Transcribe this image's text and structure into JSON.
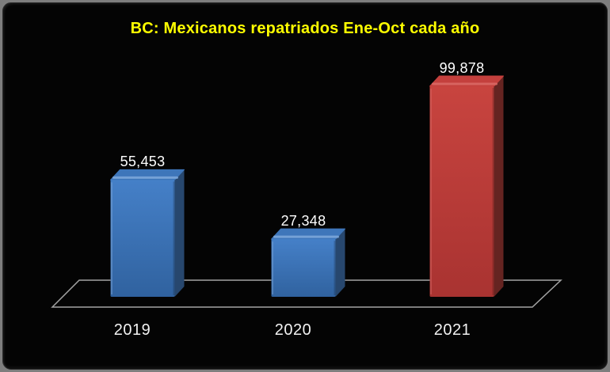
{
  "window": {
    "background": "#040404",
    "frame_border_color": "#7e7e7e"
  },
  "chart_data": {
    "type": "bar",
    "effect": "3d",
    "title": "BC: Mexicanos repatriados Ene-Oct cada año",
    "title_color": "#FFFF00",
    "categories": [
      "2019",
      "2020",
      "2021"
    ],
    "values": [
      55453,
      27348,
      99878
    ],
    "value_labels": [
      "55,453",
      "27,348",
      "99,878"
    ],
    "bar_palette": [
      "blue",
      "blue",
      "red"
    ],
    "palette": {
      "blue": {
        "face_top": "#4580C8",
        "face_bottom": "#30629F",
        "side": "#27476E",
        "top_face": "#3E76BA",
        "bevel": "#7FA9DC"
      },
      "red": {
        "face_top": "#C8443F",
        "face_bottom": "#A93331",
        "side": "#652421",
        "top_face": "#C4403D",
        "bevel": "#DB6B67"
      }
    },
    "label_color": "#FFFFFF",
    "floor_line_color": "#A3A3A3",
    "background": "#000000",
    "legend": "none",
    "gridlines": false,
    "y_axis_visible": false,
    "ylim": [
      0,
      100000
    ]
  }
}
